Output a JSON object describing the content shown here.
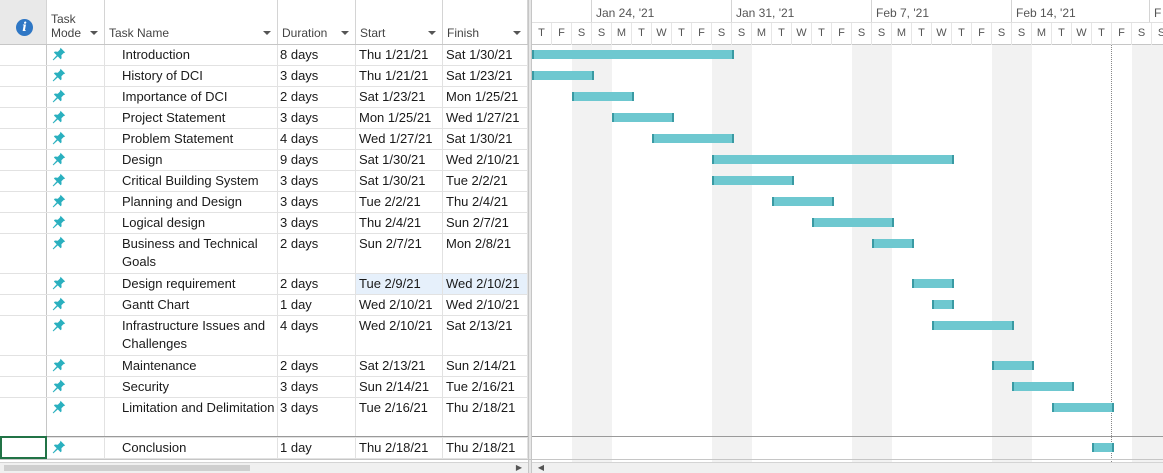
{
  "header": {
    "info_icon": "info-icon",
    "task_mode": "Task Mode",
    "task_name": "Task Name",
    "duration": "Duration",
    "start": "Start",
    "finish": "Finish"
  },
  "timeline": {
    "weeks": [
      "Jan 24, '21",
      "Jan 31, '21",
      "Feb 7, '21",
      "Feb 14, '21",
      "F"
    ],
    "days": [
      "T",
      "F",
      "S",
      "S",
      "M",
      "T",
      "W",
      "T",
      "F",
      "S",
      "S",
      "M",
      "T",
      "W",
      "T",
      "F",
      "S",
      "S",
      "M",
      "T",
      "W",
      "T",
      "F",
      "S",
      "S",
      "M",
      "T",
      "W",
      "T",
      "F",
      "S",
      "S"
    ]
  },
  "tasks": [
    {
      "name": "Introduction",
      "duration": "8 days",
      "start": "Thu 1/21/21",
      "finish": "Sat 1/30/21"
    },
    {
      "name": "History of DCI",
      "duration": "3 days",
      "start": "Thu 1/21/21",
      "finish": "Sat 1/23/21"
    },
    {
      "name": "Importance of DCI",
      "duration": "2 days",
      "start": "Sat 1/23/21",
      "finish": "Mon 1/25/21"
    },
    {
      "name": "Project Statement",
      "duration": "3 days",
      "start": "Mon 1/25/21",
      "finish": "Wed 1/27/21"
    },
    {
      "name": "Problem Statement",
      "duration": "4 days",
      "start": "Wed 1/27/21",
      "finish": "Sat 1/30/21"
    },
    {
      "name": "Design",
      "duration": "9 days",
      "start": "Sat 1/30/21",
      "finish": "Wed 2/10/21"
    },
    {
      "name": "Critical Building System",
      "duration": "3 days",
      "start": "Sat 1/30/21",
      "finish": "Tue 2/2/21"
    },
    {
      "name": "Planning and Design",
      "duration": "3 days",
      "start": "Tue 2/2/21",
      "finish": "Thu 2/4/21"
    },
    {
      "name": "Logical design",
      "duration": "3 days",
      "start": "Thu 2/4/21",
      "finish": "Sun 2/7/21"
    },
    {
      "name": "Business and Technical Goals",
      "duration": "2 days",
      "start": "Sun 2/7/21",
      "finish": "Mon 2/8/21"
    },
    {
      "name": "Design requirement",
      "duration": "2 days",
      "start": "Tue 2/9/21",
      "finish": "Wed 2/10/21"
    },
    {
      "name": "Gantt Chart",
      "duration": "1 day",
      "start": "Wed 2/10/21",
      "finish": "Wed 2/10/21"
    },
    {
      "name": "Infrastructure Issues and Challenges",
      "duration": "4 days",
      "start": "Wed 2/10/21",
      "finish": "Sat 2/13/21"
    },
    {
      "name": "Maintenance",
      "duration": "2 days",
      "start": "Sat 2/13/21",
      "finish": "Sun 2/14/21"
    },
    {
      "name": "Security",
      "duration": "3 days",
      "start": "Sun 2/14/21",
      "finish": "Tue 2/16/21"
    },
    {
      "name": "Limitation and Delimitation",
      "duration": "3 days",
      "start": "Tue 2/16/21",
      "finish": "Thu 2/18/21"
    },
    {
      "name": "Conclusion",
      "duration": "1 day",
      "start": "Thu 2/18/21",
      "finish": "Thu 2/18/21"
    }
  ],
  "colors": {
    "bar_fill": "#6ec8d0",
    "bar_edge": "#3a9aa3",
    "pin": "#2ab0bf",
    "info": "#2f77c5"
  }
}
